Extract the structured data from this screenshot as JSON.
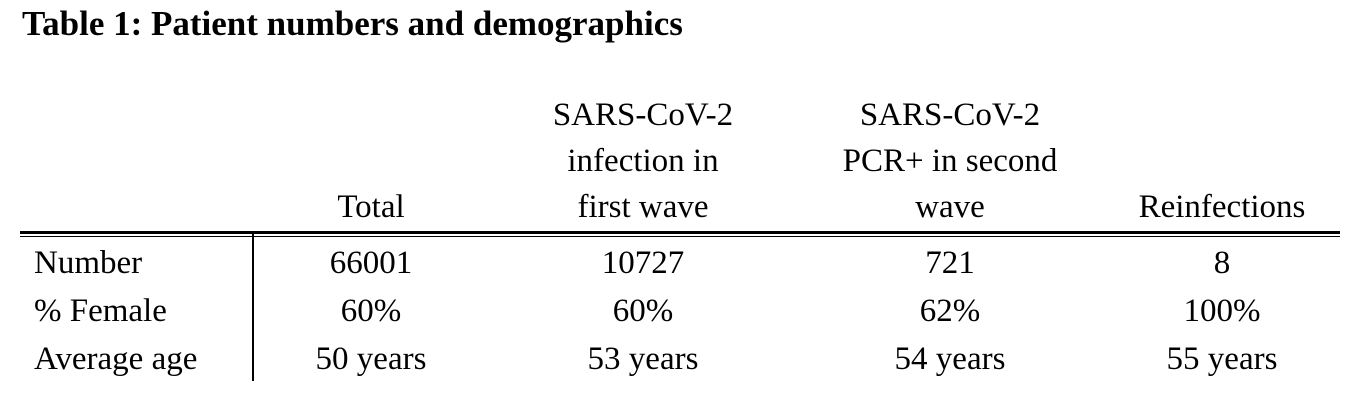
{
  "title": "Table 1: Patient numbers and demographics",
  "table": {
    "headers": [
      {
        "lines": [
          "",
          "",
          "Total"
        ]
      },
      {
        "lines": [
          "SARS-CoV-2",
          "infection in",
          "first wave"
        ]
      },
      {
        "lines": [
          "SARS-CoV-2",
          "PCR+ in second",
          "wave"
        ]
      },
      {
        "lines": [
          "",
          "",
          "Reinfections"
        ]
      }
    ],
    "rows": [
      {
        "label": "Number",
        "values": [
          "66001",
          "10727",
          "721",
          "8"
        ]
      },
      {
        "label": "% Female",
        "values": [
          "60%",
          "60%",
          "62%",
          "100%"
        ]
      },
      {
        "label": "Average age",
        "values": [
          "50 years",
          "53 years",
          "54 years",
          "55 years"
        ]
      }
    ]
  }
}
